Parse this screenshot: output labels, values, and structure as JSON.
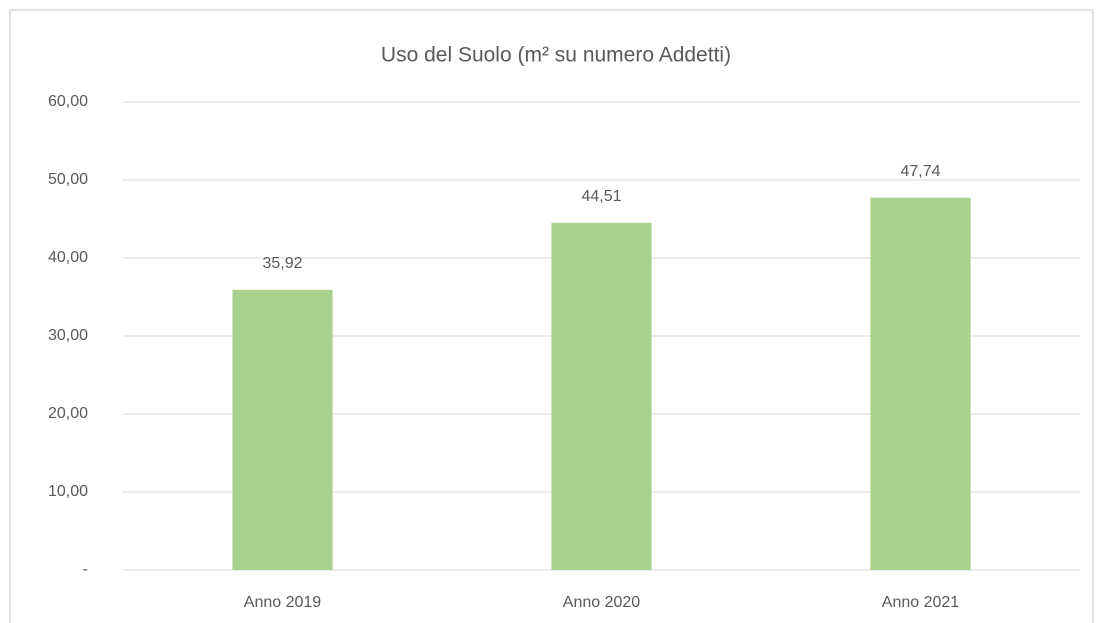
{
  "chart_data": {
    "type": "bar",
    "title": "Uso del Suolo (m² su numero Addetti)",
    "categories": [
      "Anno 2019",
      "Anno 2020",
      "Anno 2021"
    ],
    "values": [
      35.92,
      44.51,
      47.74
    ],
    "value_labels": [
      "35,92",
      "44,51",
      "47,74"
    ],
    "color": "#a9d18e",
    "ylim": [
      0,
      60
    ],
    "yticks": [
      {
        "value": 0,
        "label": "-"
      },
      {
        "value": 10,
        "label": "10,00"
      },
      {
        "value": 20,
        "label": "20,00"
      },
      {
        "value": 30,
        "label": "30,00"
      },
      {
        "value": 40,
        "label": "40,00"
      },
      {
        "value": 50,
        "label": "50,00"
      },
      {
        "value": 60,
        "label": "60,00"
      }
    ],
    "grid": true
  }
}
